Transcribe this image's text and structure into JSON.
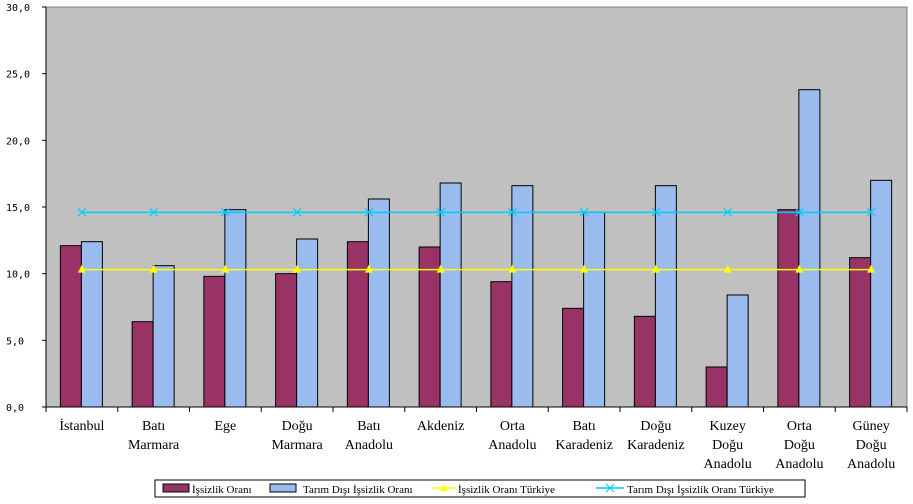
{
  "chart_data": {
    "type": "bar",
    "title": "",
    "xlabel": "",
    "ylabel": "",
    "ylim": [
      0,
      30
    ],
    "yticks": [
      0,
      5,
      10,
      15,
      20,
      25,
      30
    ],
    "ytick_labels": [
      "0,0",
      "5,0",
      "10,0",
      "15,0",
      "20,0",
      "25,0",
      "30,0"
    ],
    "categories": [
      [
        "İstanbul"
      ],
      [
        "Batı",
        "Marmara"
      ],
      [
        "Ege"
      ],
      [
        "Doğu",
        "Marmara"
      ],
      [
        "Batı",
        "Anadolu"
      ],
      [
        "Akdeniz"
      ],
      [
        "Orta",
        "Anadolu"
      ],
      [
        "Batı",
        "Karadeniz"
      ],
      [
        "Doğu",
        "Karadeniz"
      ],
      [
        "Kuzey",
        "Doğu",
        "Anadolu"
      ],
      [
        "Orta",
        "Doğu",
        "Anadolu"
      ],
      [
        "Güney",
        "Doğu",
        "Anadolu"
      ]
    ],
    "series": [
      {
        "name": "İşsizlik Oranı",
        "kind": "bar",
        "color": "#993366",
        "values": [
          12.1,
          6.4,
          9.8,
          10.0,
          12.4,
          12.0,
          9.4,
          7.4,
          6.8,
          3.0,
          14.8,
          11.2
        ]
      },
      {
        "name": "Tarım Dışı İşsizlik Oranı",
        "kind": "bar",
        "color": "#99bbee",
        "values": [
          12.4,
          10.6,
          14.8,
          12.6,
          15.6,
          16.8,
          16.6,
          14.6,
          16.6,
          8.4,
          23.8,
          17.0
        ]
      },
      {
        "name": "İşsizlik Oranı Türkiye",
        "kind": "line",
        "color": "#ffff00",
        "marker": "triangle",
        "values": [
          10.3,
          10.3,
          10.3,
          10.3,
          10.3,
          10.3,
          10.3,
          10.3,
          10.3,
          10.3,
          10.3,
          10.3
        ]
      },
      {
        "name": "Tarım Dışı İşsizlik Oranı Türkiye",
        "kind": "line",
        "color": "#00ccff",
        "marker": "x",
        "values": [
          14.6,
          14.6,
          14.6,
          14.6,
          14.6,
          14.6,
          14.6,
          14.6,
          14.6,
          14.6,
          14.6,
          14.6
        ]
      }
    ],
    "plot_background": "#c0c0c0",
    "grid": false,
    "legend_position": "bottom"
  }
}
